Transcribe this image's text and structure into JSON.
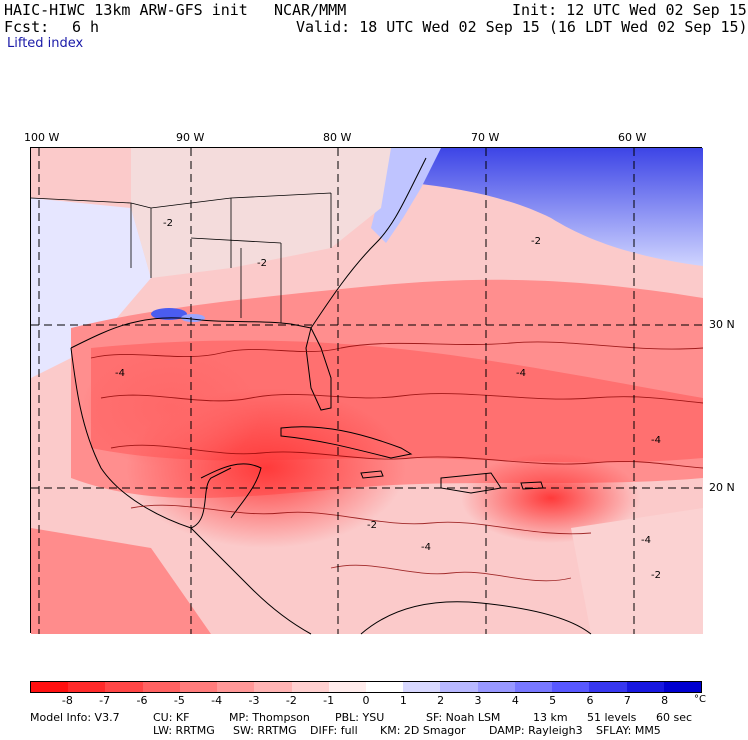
{
  "header": {
    "model_title": "HAIC-HIWC 13km ARW-GFS init",
    "org": "NCAR/MMM",
    "init": "Init: 12 UTC Wed 02 Sep 15",
    "fcst_label": "Fcst:",
    "fcst_value": "6 h",
    "valid": "Valid: 18 UTC Wed 02 Sep 15 (16 LDT Wed 02 Sep 15)",
    "field": "Lifted index"
  },
  "map": {
    "lon_labels": [
      "100 W",
      "90 W",
      "80 W",
      "70 W",
      "60 W"
    ],
    "lat_labels": [
      "30 N",
      "20 N"
    ],
    "contour_labels": [
      "-2",
      "-2",
      "-2",
      "-4",
      "-4",
      "-4",
      "-4",
      "-4",
      "-2",
      "-2"
    ]
  },
  "colorbar": {
    "ticks": [
      "-8",
      "-7",
      "-6",
      "-5",
      "-4",
      "-3",
      "-2",
      "-1",
      "0",
      "1",
      "2",
      "3",
      "4",
      "5",
      "6",
      "7",
      "8"
    ],
    "unit": "°C",
    "colors": [
      "#ff1010",
      "#ff2a2a",
      "#ff4646",
      "#ff6262",
      "#ff7c7c",
      "#ff9898",
      "#ffb4b4",
      "#ffd0d0",
      "#ffecec",
      "#ffffff",
      "#d8d8ff",
      "#b8b8ff",
      "#9898ff",
      "#7878ff",
      "#5858ff",
      "#3838f0",
      "#1818e0",
      "#0000d0"
    ]
  },
  "model_info": {
    "line1": [
      "Model Info: V3.7",
      "CU: KF",
      "MP: Thompson",
      "PBL: YSU",
      "SF: Noah LSM",
      "13 km",
      "51 levels",
      "60 sec"
    ],
    "line2": [
      "LW: RRTMG",
      "SW: RRTMG",
      "DIFF: full",
      "KM: 2D Smagor",
      "DAMP: Rayleigh3",
      "SFLAY: MM5"
    ]
  }
}
